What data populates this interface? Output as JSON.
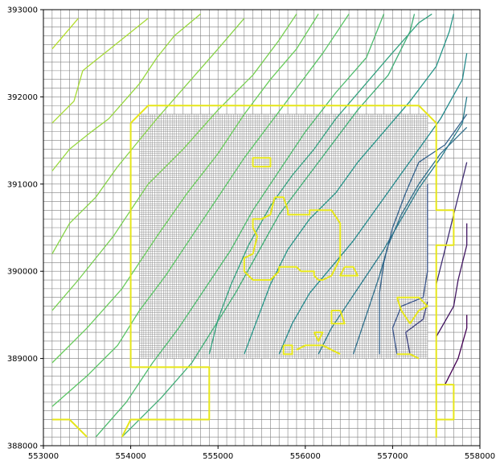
{
  "chart_data": {
    "type": "line",
    "title": "",
    "xlabel": "",
    "ylabel": "",
    "xlim": [
      553000,
      558000
    ],
    "ylim": [
      388000,
      393000
    ],
    "x_ticks": [
      553000,
      554000,
      555000,
      556000,
      557000,
      558000
    ],
    "y_ticks": [
      388000,
      389000,
      390000,
      391000,
      392000,
      393000
    ],
    "x_tick_labels": [
      "553000",
      "554000",
      "555000",
      "556000",
      "557000",
      "558000"
    ],
    "y_tick_labels": [
      "388000",
      "389000",
      "390000",
      "391000",
      "392000",
      "393000"
    ],
    "grid": {
      "coarse_cell": 100,
      "fine_cell": 25,
      "fine_extent": {
        "x": [
          554100,
          557400
        ],
        "y": [
          389000,
          391800
        ]
      },
      "color": "#808080"
    },
    "colors": {
      "contour_high": "#b5de2b",
      "contour_mid": "#21918c",
      "contour_low": "#440154",
      "boundary": "#e6e61a"
    },
    "contours": [
      [
        [
          553100,
          392550
        ],
        [
          553400,
          392900
        ]
      ],
      [
        [
          553100,
          391700
        ],
        [
          553350,
          391950
        ],
        [
          553450,
          392300
        ],
        [
          553700,
          392500
        ],
        [
          554200,
          392900
        ]
      ],
      [
        [
          553100,
          391150
        ],
        [
          553300,
          391400
        ],
        [
          553550,
          391600
        ],
        [
          553750,
          391750
        ],
        [
          554100,
          392150
        ],
        [
          554300,
          392450
        ],
        [
          554500,
          392700
        ],
        [
          554800,
          392950
        ]
      ],
      [
        [
          553100,
          390200
        ],
        [
          553300,
          390550
        ],
        [
          553600,
          390850
        ],
        [
          553850,
          391200
        ],
        [
          554300,
          391750
        ],
        [
          554650,
          392150
        ],
        [
          555000,
          392550
        ],
        [
          555300,
          392900
        ]
      ],
      [
        [
          553100,
          389550
        ],
        [
          553400,
          389900
        ],
        [
          553800,
          390400
        ],
        [
          554200,
          391000
        ],
        [
          554600,
          391400
        ],
        [
          555000,
          391850
        ],
        [
          555400,
          392250
        ],
        [
          555700,
          392650
        ],
        [
          555900,
          392950
        ]
      ],
      [
        [
          553100,
          388950
        ],
        [
          553500,
          389350
        ],
        [
          553900,
          389800
        ],
        [
          554300,
          390400
        ],
        [
          554650,
          390900
        ],
        [
          555000,
          391350
        ],
        [
          555300,
          391800
        ],
        [
          555600,
          392200
        ],
        [
          555900,
          392550
        ],
        [
          556150,
          392950
        ]
      ],
      [
        [
          553100,
          388450
        ],
        [
          553500,
          388800
        ],
        [
          553850,
          389150
        ],
        [
          554100,
          389550
        ],
        [
          554400,
          389950
        ],
        [
          554700,
          390400
        ],
        [
          555000,
          390850
        ],
        [
          555300,
          391300
        ],
        [
          555600,
          391700
        ],
        [
          555900,
          392100
        ],
        [
          556200,
          392500
        ],
        [
          556500,
          392950
        ]
      ],
      [
        [
          553600,
          388100
        ],
        [
          553950,
          388500
        ],
        [
          554250,
          388950
        ],
        [
          554550,
          389350
        ],
        [
          554850,
          389800
        ],
        [
          555150,
          390250
        ],
        [
          555400,
          390700
        ],
        [
          555700,
          391150
        ],
        [
          556000,
          391600
        ],
        [
          556350,
          392050
        ],
        [
          556700,
          392450
        ],
        [
          556900,
          392950
        ]
      ],
      [
        [
          553900,
          388100
        ],
        [
          554350,
          388550
        ],
        [
          554700,
          388950
        ],
        [
          554950,
          389350
        ],
        [
          555200,
          389750
        ],
        [
          555450,
          390200
        ],
        [
          555700,
          390650
        ],
        [
          556000,
          391050
        ],
        [
          556300,
          391450
        ],
        [
          556600,
          391850
        ],
        [
          556950,
          392250
        ],
        [
          557200,
          392750
        ],
        [
          557250,
          392950
        ]
      ],
      [
        [
          554900,
          389050
        ],
        [
          555000,
          389450
        ],
        [
          555150,
          389850
        ],
        [
          555350,
          390300
        ],
        [
          555600,
          390750
        ],
        [
          555850,
          391100
        ],
        [
          556100,
          391400
        ],
        [
          556350,
          391750
        ],
        [
          556650,
          392100
        ],
        [
          556950,
          392450
        ],
        [
          557300,
          392850
        ],
        [
          557450,
          392950
        ]
      ],
      [
        [
          555300,
          389050
        ],
        [
          555450,
          389450
        ],
        [
          555600,
          389850
        ],
        [
          555800,
          390250
        ],
        [
          556050,
          390600
        ],
        [
          556350,
          390900
        ],
        [
          556600,
          391250
        ],
        [
          556900,
          391600
        ],
        [
          557200,
          391950
        ],
        [
          557500,
          392350
        ],
        [
          557650,
          392750
        ],
        [
          557700,
          392950
        ]
      ],
      [
        [
          555700,
          389050
        ],
        [
          555850,
          389400
        ],
        [
          556050,
          389750
        ],
        [
          556300,
          390050
        ],
        [
          556550,
          390350
        ],
        [
          556800,
          390700
        ],
        [
          557050,
          391050
        ],
        [
          557300,
          391400
        ],
        [
          557550,
          391750
        ],
        [
          557800,
          392200
        ],
        [
          557850,
          392500
        ]
      ],
      [
        [
          556150,
          389050
        ],
        [
          556300,
          389350
        ],
        [
          556500,
          389650
        ],
        [
          556700,
          389950
        ],
        [
          556900,
          390250
        ],
        [
          557100,
          390600
        ],
        [
          557300,
          390950
        ],
        [
          557550,
          391300
        ],
        [
          557800,
          391700
        ],
        [
          557850,
          392000
        ]
      ],
      [
        [
          556550,
          389050
        ],
        [
          556650,
          389350
        ],
        [
          556750,
          389650
        ],
        [
          556850,
          389950
        ],
        [
          556950,
          390300
        ],
        [
          557100,
          390650
        ],
        [
          557300,
          391000
        ],
        [
          557550,
          391350
        ],
        [
          557850,
          391650
        ]
      ],
      [
        [
          556850,
          389050
        ],
        [
          556850,
          389400
        ],
        [
          556850,
          389750
        ],
        [
          556900,
          390100
        ],
        [
          557000,
          390500
        ],
        [
          557150,
          390900
        ],
        [
          557300,
          391250
        ],
        [
          557600,
          391450
        ],
        [
          557850,
          391800
        ]
      ],
      [
        [
          557050,
          389050
        ],
        [
          557000,
          389350
        ],
        [
          557100,
          389600
        ],
        [
          557350,
          389700
        ],
        [
          557400,
          390000
        ],
        [
          557400,
          390500
        ],
        [
          557400,
          391000
        ]
      ],
      [
        [
          557200,
          389050
        ],
        [
          557150,
          389300
        ],
        [
          557350,
          389450
        ],
        [
          557400,
          389650
        ]
      ],
      [
        [
          557500,
          389850
        ],
        [
          557600,
          390250
        ],
        [
          557700,
          390650
        ],
        [
          557800,
          391050
        ],
        [
          557850,
          391250
        ]
      ],
      [
        [
          557500,
          389250
        ],
        [
          557700,
          389600
        ],
        [
          557750,
          389900
        ],
        [
          557850,
          390300
        ],
        [
          557850,
          390550
        ]
      ],
      [
        [
          557600,
          388700
        ],
        [
          557750,
          389000
        ],
        [
          557850,
          389350
        ],
        [
          557850,
          389500
        ]
      ]
    ],
    "boundaries": [
      [
        [
          554000,
          391700
        ],
        [
          554200,
          391900
        ],
        [
          557300,
          391900
        ],
        [
          557500,
          391700
        ],
        [
          557500,
          390700
        ],
        [
          557700,
          390700
        ],
        [
          557700,
          390300
        ],
        [
          557500,
          390300
        ],
        [
          557500,
          388700
        ],
        [
          557700,
          388700
        ],
        [
          557700,
          388300
        ],
        [
          557500,
          388300
        ],
        [
          557500,
          388100
        ],
        [
          557500,
          388300
        ],
        [
          557500,
          390300
        ]
      ],
      [
        [
          554000,
          391700
        ],
        [
          554000,
          388900
        ],
        [
          554900,
          388900
        ],
        [
          554900,
          388300
        ],
        [
          554000,
          388300
        ],
        [
          553900,
          388100
        ]
      ],
      [
        [
          553100,
          388300
        ],
        [
          553300,
          388300
        ],
        [
          553500,
          388100
        ]
      ],
      [
        [
          555650,
          390850
        ],
        [
          555750,
          390850
        ],
        [
          555800,
          390700
        ],
        [
          555800,
          390650
        ],
        [
          556050,
          390650
        ],
        [
          556050,
          390700
        ],
        [
          556300,
          390700
        ],
        [
          556400,
          390550
        ],
        [
          556400,
          390150
        ],
        [
          556300,
          389950
        ],
        [
          556200,
          389900
        ],
        [
          556150,
          389900
        ],
        [
          556100,
          389950
        ],
        [
          556100,
          390000
        ],
        [
          555950,
          390000
        ],
        [
          555900,
          390050
        ],
        [
          555700,
          390050
        ],
        [
          555700,
          390000
        ],
        [
          555600,
          389900
        ],
        [
          555400,
          389900
        ],
        [
          555300,
          390000
        ],
        [
          555300,
          390150
        ],
        [
          555400,
          390200
        ],
        [
          555450,
          390400
        ],
        [
          555400,
          390500
        ],
        [
          555400,
          390600
        ],
        [
          555500,
          390600
        ],
        [
          555600,
          390650
        ],
        [
          555650,
          390850
        ]
      ],
      [
        [
          555400,
          391200
        ],
        [
          555600,
          391200
        ],
        [
          555600,
          391300
        ],
        [
          555400,
          391300
        ],
        [
          555400,
          391200
        ]
      ],
      [
        [
          556450,
          390050
        ],
        [
          556550,
          390050
        ],
        [
          556600,
          389950
        ],
        [
          556400,
          389950
        ],
        [
          556450,
          390050
        ]
      ],
      [
        [
          556300,
          389550
        ],
        [
          556400,
          389550
        ],
        [
          556450,
          389400
        ],
        [
          556300,
          389400
        ],
        [
          556300,
          389550
        ]
      ],
      [
        [
          556100,
          389300
        ],
        [
          556200,
          389300
        ],
        [
          556150,
          389200
        ],
        [
          556100,
          389300
        ]
      ],
      [
        [
          555750,
          389150
        ],
        [
          555850,
          389150
        ],
        [
          555850,
          389050
        ],
        [
          555750,
          389050
        ],
        [
          555750,
          389150
        ]
      ],
      [
        [
          555900,
          389100
        ],
        [
          556000,
          389150
        ],
        [
          556200,
          389150
        ],
        [
          556300,
          389100
        ],
        [
          556400,
          389050
        ]
      ],
      [
        [
          557050,
          389700
        ],
        [
          557300,
          389700
        ],
        [
          557400,
          389600
        ],
        [
          557300,
          389550
        ],
        [
          557200,
          389400
        ],
        [
          557100,
          389550
        ],
        [
          557050,
          389700
        ]
      ],
      [
        [
          557050,
          389050
        ],
        [
          557200,
          389050
        ],
        [
          557300,
          389000
        ]
      ]
    ]
  }
}
